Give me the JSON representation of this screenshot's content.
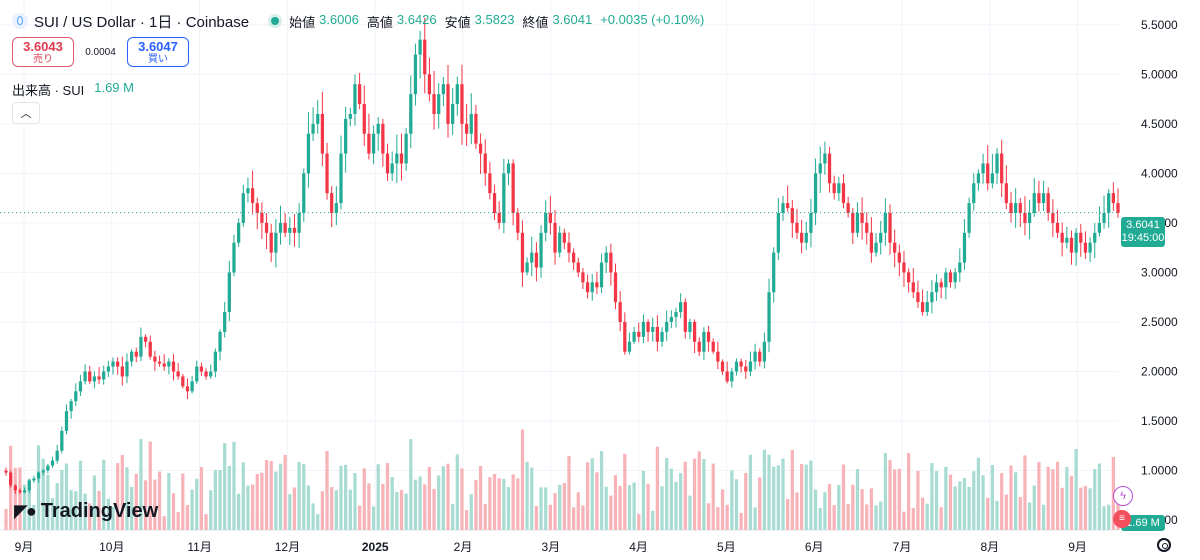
{
  "header": {
    "title": "SUI / US Dollar · 1日 · Coinbase",
    "ohlc": [
      {
        "label": "始値",
        "value": "3.6006"
      },
      {
        "label": "高値",
        "value": "3.6426"
      },
      {
        "label": "安値",
        "value": "3.5823"
      },
      {
        "label": "終値",
        "value": "3.6041"
      }
    ],
    "change": "+0.0035 (+0.10%)"
  },
  "trade": {
    "sell_price": "3.6043",
    "sell_label": "売り",
    "spread": "0.0004",
    "buy_price": "3.6047",
    "buy_label": "買い"
  },
  "volume_legend": {
    "label": "出来高 · SUI",
    "value": "1.69 M"
  },
  "collapse_icon": "chevron-up-icon",
  "price_badge": {
    "price": "3.6041",
    "time": "19:45:00"
  },
  "volume_badge": "1.69 M",
  "logo_text": "TradingView",
  "colors": {
    "up": "#22ab94",
    "down": "#f23645",
    "up_vol": "#a8dcd3",
    "down_vol": "#f7b3b8"
  },
  "chart_data": {
    "type": "candlestick",
    "y_axis_labels": [
      "5.5000",
      "5.0000",
      "4.5000",
      "4.0000",
      "3.5000",
      "3.0000",
      "2.5000",
      "2.0000",
      "1.5000",
      "1.0000",
      "0.5000"
    ],
    "ylim": [
      0.4,
      5.75
    ],
    "x_axis_labels": [
      "9月",
      "10月",
      "11月",
      "12月",
      "2025",
      "2月",
      "3月",
      "4月",
      "5月",
      "6月",
      "7月",
      "8月",
      "9月"
    ],
    "last_price": 3.6041,
    "grid": true,
    "approx_daily_closes": [
      0.98,
      0.85,
      0.8,
      0.78,
      0.8,
      0.9,
      0.92,
      0.98,
      1.0,
      1.05,
      1.1,
      1.2,
      1.4,
      1.6,
      1.7,
      1.8,
      1.9,
      2.0,
      1.9,
      1.95,
      1.92,
      2.0,
      2.05,
      2.1,
      2.05,
      1.95,
      2.1,
      2.2,
      2.15,
      2.35,
      2.3,
      2.15,
      2.1,
      2.08,
      2.05,
      2.1,
      2.0,
      1.95,
      1.85,
      1.8,
      1.9,
      2.05,
      2.0,
      1.95,
      2.0,
      2.2,
      2.4,
      2.6,
      3.0,
      3.3,
      3.5,
      3.8,
      3.85,
      3.7,
      3.6,
      3.5,
      3.4,
      3.2,
      3.4,
      3.5,
      3.4,
      3.45,
      3.4,
      3.6,
      4.0,
      4.4,
      4.5,
      4.6,
      4.2,
      3.8,
      3.6,
      3.7,
      4.2,
      4.55,
      4.6,
      4.9,
      4.7,
      4.4,
      4.2,
      4.4,
      4.5,
      4.2,
      4.0,
      4.1,
      4.2,
      4.1,
      4.4,
      4.8,
      5.2,
      5.35,
      5.0,
      4.8,
      4.6,
      4.8,
      4.9,
      4.5,
      4.7,
      4.9,
      4.5,
      4.4,
      4.6,
      4.3,
      4.2,
      4.0,
      3.8,
      3.6,
      3.5,
      4.0,
      4.1,
      3.6,
      3.4,
      3.0,
      3.1,
      3.2,
      3.05,
      3.4,
      3.6,
      3.5,
      3.2,
      3.4,
      3.3,
      3.2,
      3.1,
      3.0,
      2.9,
      2.8,
      2.9,
      2.85,
      3.1,
      3.2,
      3.0,
      2.7,
      2.5,
      2.2,
      2.3,
      2.4,
      2.35,
      2.5,
      2.4,
      2.45,
      2.3,
      2.4,
      2.5,
      2.55,
      2.6,
      2.7,
      2.4,
      2.5,
      2.3,
      2.2,
      2.4,
      2.3,
      2.2,
      2.1,
      2.0,
      1.9,
      2.0,
      2.1,
      2.05,
      2.0,
      2.1,
      2.2,
      2.1,
      2.3,
      2.8,
      3.2,
      3.6,
      3.7,
      3.65,
      3.5,
      3.4,
      3.3,
      3.4,
      3.6,
      4.0,
      4.1,
      4.2,
      3.9,
      3.8,
      3.9,
      3.7,
      3.6,
      3.4,
      3.6,
      3.5,
      3.4,
      3.2,
      3.3,
      3.4,
      3.6,
      3.3,
      3.2,
      3.1,
      3.0,
      2.9,
      2.8,
      2.7,
      2.6,
      2.7,
      2.8,
      2.9,
      2.85,
      3.0,
      2.9,
      3.0,
      3.1,
      3.4,
      3.7,
      3.9,
      4.0,
      4.1,
      3.9,
      4.0,
      4.2,
      3.9,
      3.7,
      3.6,
      3.7,
      3.6,
      3.5,
      3.6,
      3.8,
      3.7,
      3.8,
      3.6,
      3.5,
      3.4,
      3.3,
      3.35,
      3.2,
      3.4,
      3.3,
      3.2,
      3.3,
      3.4,
      3.5,
      3.6,
      3.8,
      3.7,
      3.6
    ]
  }
}
